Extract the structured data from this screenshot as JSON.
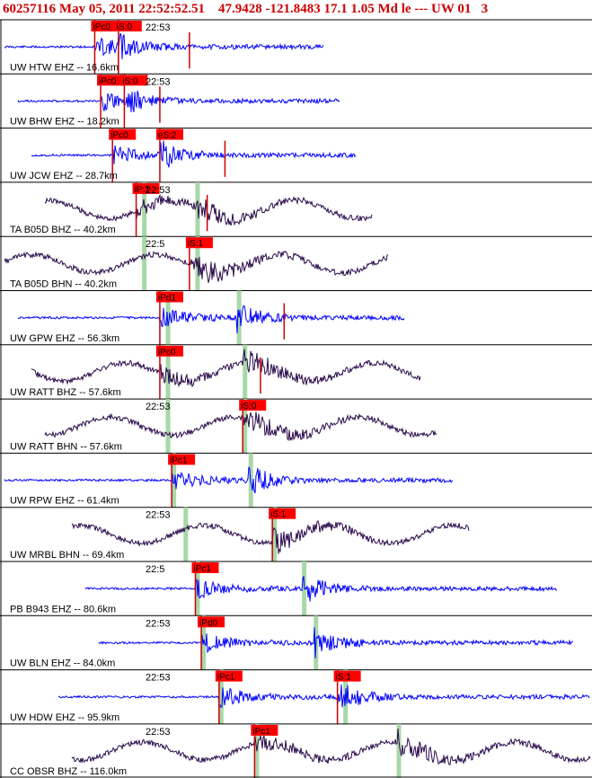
{
  "header": {
    "title": "60257116 May 05, 2011 22:52:52.51",
    "location": "47.9428 -121.8483 17.1 1.05 Md le --- UW 01",
    "extra": "3"
  },
  "colors": {
    "blue_trace": "#0000ff",
    "purple_trace": "#2a0a4a",
    "pick_box": "#ff0000",
    "pick_line": "#cc0000",
    "green_band": "#a8d8a8",
    "panel_border": "#000000"
  },
  "panels": [
    {
      "label": "UW HTW EHZ -- 16.6km",
      "time": "22:53",
      "trace": "blue",
      "picks": [
        {
          "text": "iPc0",
          "pos": 0.16
        },
        {
          "text": "iS:0",
          "pos": 0.2
        }
      ],
      "green": [],
      "extra_lines": [
        0.32
      ]
    },
    {
      "label": "UW BHW EHZ -- 18.2km",
      "time": "22:53",
      "trace": "blue",
      "picks": [
        {
          "text": "iPc0",
          "pos": 0.17
        },
        {
          "text": "iS:0",
          "pos": 0.21
        }
      ],
      "green": [],
      "extra_lines": [
        0.27
      ]
    },
    {
      "label": "UW JCW EHZ -- 28.7km",
      "time": "",
      "trace": "blue",
      "picks": [
        {
          "text": "iPc0",
          "pos": 0.19
        },
        {
          "text": "eS:2",
          "pos": 0.27
        }
      ],
      "green": [],
      "extra_lines": [
        0.38
      ]
    },
    {
      "label": "TA B05D BHZ -- 40.2km",
      "time": "22:53",
      "trace": "purple",
      "picks": [
        {
          "text": "iP:1",
          "pos": 0.23
        }
      ],
      "green": [
        0.24,
        0.33
      ],
      "extra_lines": [
        0.35
      ]
    },
    {
      "label": "TA B05D BHN -- 40.2km",
      "time": "22:5",
      "trace": "purple",
      "picks": [
        {
          "text": "iS:1",
          "pos": 0.32
        }
      ],
      "green": [
        0.24,
        0.33
      ],
      "extra_lines": []
    },
    {
      "label": "UW GPW EHZ -- 56.3km",
      "time": "",
      "trace": "blue",
      "picks": [
        {
          "text": "iPd1",
          "pos": 0.27
        }
      ],
      "green": [
        0.28,
        0.4
      ],
      "extra_lines": [
        0.48
      ]
    },
    {
      "label": "UW RATT BHZ -- 57.6km",
      "time": "",
      "trace": "purple",
      "picks": [
        {
          "text": "iPc0",
          "pos": 0.27
        }
      ],
      "green": [
        0.28,
        0.41
      ],
      "extra_lines": [
        0.44
      ]
    },
    {
      "label": "UW RATT BHN -- 57.6km",
      "time": "22:53",
      "trace": "purple",
      "picks": [
        {
          "text": "iS:0",
          "pos": 0.41
        }
      ],
      "green": [
        0.28,
        0.41
      ],
      "extra_lines": []
    },
    {
      "label": "UW RPW EHZ -- 61.4km",
      "time": "",
      "trace": "blue",
      "picks": [
        {
          "text": "iPc1",
          "pos": 0.29
        }
      ],
      "green": [
        0.29,
        0.42
      ],
      "extra_lines": []
    },
    {
      "label": "UW MRBL BHN -- 69.4km",
      "time": "22:53",
      "trace": "purple",
      "picks": [
        {
          "text": "iS:1",
          "pos": 0.46
        }
      ],
      "green": [
        0.31,
        0.46
      ],
      "extra_lines": []
    },
    {
      "label": "PB B943 EHZ -- 80.6km",
      "time": "22:5",
      "trace": "blue",
      "picks": [
        {
          "text": "iPc1",
          "pos": 0.33
        }
      ],
      "green": [
        0.33,
        0.51
      ],
      "extra_lines": []
    },
    {
      "label": "UW BLN EHZ -- 84.0km",
      "time": "22:53",
      "trace": "blue",
      "picks": [
        {
          "text": "iPd0",
          "pos": 0.34
        }
      ],
      "green": [
        0.34,
        0.53
      ],
      "extra_lines": []
    },
    {
      "label": "UW HDW EHZ -- 95.9km",
      "time": "22:53",
      "trace": "blue",
      "picks": [
        {
          "text": "iPc1",
          "pos": 0.37
        },
        {
          "text": "iS:1",
          "pos": 0.57
        }
      ],
      "green": [
        0.37,
        0.58
      ],
      "extra_lines": []
    },
    {
      "label": "CC OBSR BHZ -- 116.0km",
      "time": "22:53",
      "trace": "purple",
      "picks": [
        {
          "text": "iPc1",
          "pos": 0.43
        }
      ],
      "green": [
        0.43,
        0.67
      ],
      "extra_lines": []
    }
  ]
}
